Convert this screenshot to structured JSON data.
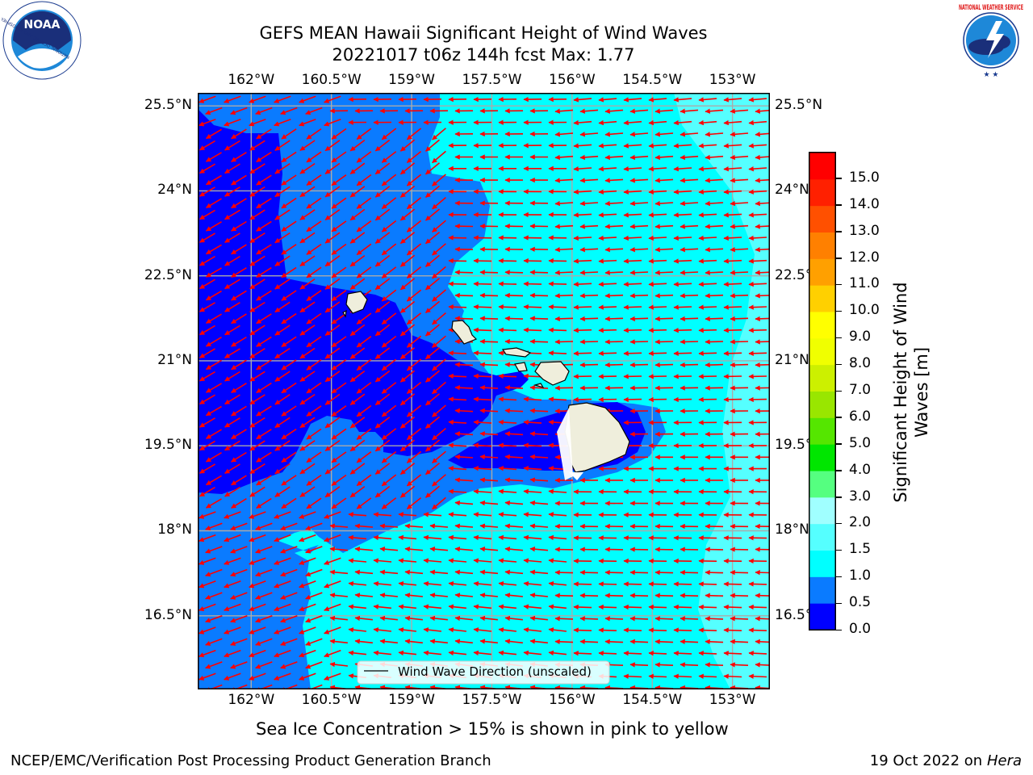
{
  "header": {
    "title_line1": "GEFS MEAN Hawaii Significant Height of Wind Waves",
    "title_line2": "20221017 t06z 144h fcst   Max: 1.77"
  },
  "logos": {
    "left": {
      "text": "NOAA",
      "ring_text": "NATIONAL OCEANIC AND ATMOSPHERIC ADMINISTRATION · U.S. DEPARTMENT OF COMMERCE"
    },
    "right": {
      "ring_text": "NATIONAL WEATHER SERVICE"
    }
  },
  "map": {
    "lon_ticks": [
      "162°W",
      "160.5°W",
      "159°W",
      "157.5°W",
      "156°W",
      "154.5°W",
      "153°W"
    ],
    "lat_ticks": [
      "25.5°N",
      "24°N",
      "22.5°N",
      "21°N",
      "19.5°N",
      "18°N",
      "16.5°N"
    ],
    "lon_values": [
      -162,
      -160.5,
      -159,
      -157.5,
      -156,
      -154.5,
      -153
    ],
    "lat_values": [
      25.5,
      24,
      22.5,
      21,
      19.5,
      18,
      16.5
    ],
    "extent": {
      "lon_min": -163,
      "lon_max": -152.3,
      "lat_min": 15.2,
      "lat_max": 25.73
    },
    "legend_label": "Wind Wave Direction (unscaled)",
    "arrow_color": "#ff0000",
    "land_color": "#efeedc"
  },
  "colorbar": {
    "label_line1": "Significant Height of Wind",
    "label_line2": "Waves [m]",
    "bounds": [
      0.0,
      0.5,
      1.0,
      1.5,
      2.0,
      3.0,
      4.0,
      5.0,
      6.0,
      7.0,
      8.0,
      9.0,
      10.0,
      11.0,
      12.0,
      13.0,
      14.0,
      15.0
    ],
    "tick_labels": [
      "0.0",
      "0.5",
      "1.0",
      "1.5",
      "2.0",
      "3.0",
      "4.0",
      "5.0",
      "6.0",
      "7.0",
      "8.0",
      "9.0",
      "10.0",
      "11.0",
      "12.0",
      "13.0",
      "14.0",
      "15.0"
    ],
    "colors": [
      "#0000ff",
      "#0a7bff",
      "#00ffff",
      "#55ffff",
      "#a0ffff",
      "#55ff80",
      "#00e600",
      "#55e600",
      "#99e600",
      "#ccf000",
      "#f0ff00",
      "#ffff00",
      "#ffd000",
      "#ffa000",
      "#ff8000",
      "#ff5000",
      "#ff2000",
      "#ff0000"
    ]
  },
  "caption": "Sea Ice Concentration > 15% is shown in pink to yellow",
  "footer": {
    "left": "NCEP/EMC/Verification Post Processing Product Generation Branch",
    "right_prefix": "19 Oct 2022 on ",
    "right_host": "Hera"
  }
}
